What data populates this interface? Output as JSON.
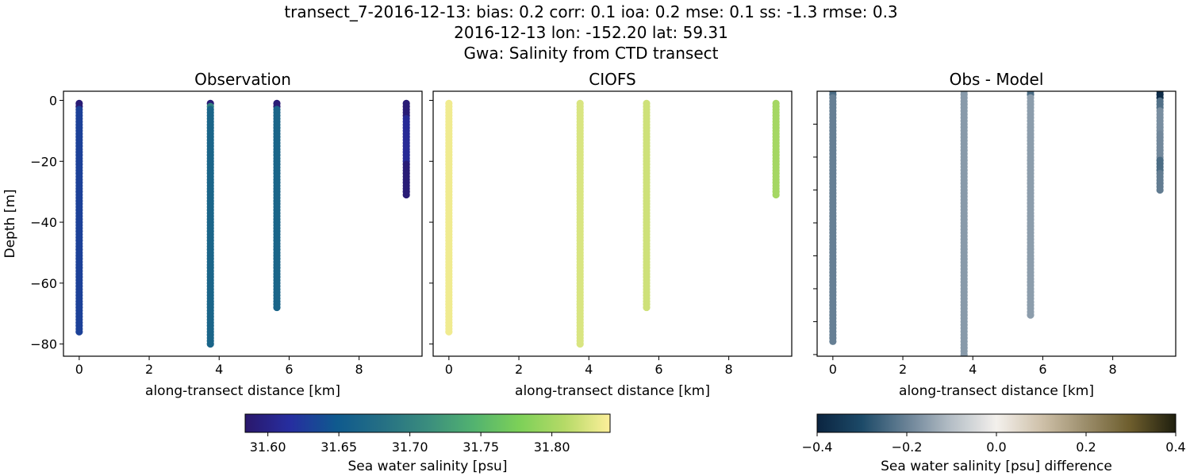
{
  "suptitle": {
    "line1": "transect_7-2016-12-13: bias: 0.2  corr: 0.1  ioa: 0.2  mse: 0.1  ss: -1.3  rmse: 0.3",
    "line2": "2016-12-13 lon: -152.20 lat: 59.31",
    "line3": "Gwa: Salinity from CTD transect"
  },
  "chart_data": [
    {
      "type": "scatter",
      "title": "Observation",
      "xlabel": "along-transect distance [km]",
      "ylabel": "Depth [m]",
      "xlim": [
        -0.45,
        9.8
      ],
      "ylim": [
        -84,
        3
      ],
      "xticks": [
        0,
        2,
        4,
        6,
        8
      ],
      "yticks": [
        0,
        -20,
        -40,
        -60,
        -80
      ],
      "colormap": "haline",
      "columns": [
        {
          "x": 0,
          "segments": [
            [
              -1,
              -2,
              31.59
            ],
            [
              -3,
              -76,
              31.63
            ]
          ]
        },
        {
          "x": 3.75,
          "segments": [
            [
              -1,
              -1,
              31.59
            ],
            [
              -2,
              -2,
              31.7
            ],
            [
              -3,
              -80,
              31.665
            ]
          ]
        },
        {
          "x": 5.65,
          "segments": [
            [
              -1,
              -2,
              31.59
            ],
            [
              -3,
              -68,
              31.665
            ]
          ]
        },
        {
          "x": 9.35,
          "segments": [
            [
              -1,
              -5,
              31.59
            ],
            [
              -6,
              -20,
              31.61
            ],
            [
              -21,
              -31,
              31.59
            ]
          ]
        }
      ]
    },
    {
      "type": "scatter",
      "title": "CIOFS",
      "xlabel": "along-transect distance [km]",
      "xlim": [
        -0.45,
        9.8
      ],
      "ylim": [
        -84,
        3
      ],
      "xticks": [
        0,
        2,
        4,
        6,
        8
      ],
      "yticks": [
        0,
        -20,
        -40,
        -60,
        -80
      ],
      "colormap": "haline",
      "columns": [
        {
          "x": 0,
          "segments": [
            [
              -1,
              -76,
              31.835
            ]
          ]
        },
        {
          "x": 3.75,
          "segments": [
            [
              -1,
              -80,
              31.825
            ]
          ]
        },
        {
          "x": 5.65,
          "segments": [
            [
              -1,
              -68,
              31.82
            ]
          ]
        },
        {
          "x": 9.35,
          "segments": [
            [
              -1,
              -31,
              31.8
            ]
          ]
        }
      ]
    },
    {
      "type": "scatter",
      "title": "Obs - Model",
      "xlabel": "along-transect distance [km]",
      "xlim": [
        -0.45,
        9.8
      ],
      "ylim": [
        -80.5,
        0
      ],
      "xticks": [
        0,
        2,
        4,
        6,
        8
      ],
      "yticks": [
        -10,
        -20,
        -30,
        -40,
        -50,
        -60,
        -70,
        -80
      ],
      "yticklabels_shown": false,
      "colormap": "diff",
      "columns": [
        {
          "x": 0,
          "segments": [
            [
              0,
              -1,
              -0.24
            ],
            [
              -2,
              -76,
              -0.205
            ]
          ]
        },
        {
          "x": 3.75,
          "segments": [
            [
              0,
              -82,
              -0.16
            ]
          ]
        },
        {
          "x": 5.65,
          "segments": [
            [
              0,
              -1,
              -0.24
            ],
            [
              -2,
              -68,
              -0.155
            ]
          ]
        },
        {
          "x": 9.35,
          "segments": [
            [
              0,
              -2,
              -0.38
            ],
            [
              -3,
              -5,
              -0.23
            ],
            [
              -6,
              -12,
              -0.18
            ],
            [
              -13,
              -20,
              -0.19
            ],
            [
              -21,
              -24,
              -0.24
            ],
            [
              -25,
              -30,
              -0.21
            ]
          ]
        }
      ]
    }
  ],
  "colorbars": [
    {
      "label": "Sea water salinity [psu]",
      "range": [
        31.584,
        31.841
      ],
      "ticks": [
        "31.60",
        "31.65",
        "31.70",
        "31.75",
        "31.80"
      ],
      "tick_values": [
        31.6,
        31.65,
        31.7,
        31.75,
        31.8
      ],
      "colormap": "haline"
    },
    {
      "label": "Sea water salinity [psu] difference",
      "range": [
        -0.4,
        0.4
      ],
      "ticks": [
        "−0.4",
        "−0.2",
        "0.0",
        "0.2",
        "0.4"
      ],
      "tick_values": [
        -0.4,
        -0.2,
        0.0,
        0.2,
        0.4
      ],
      "colormap": "diff"
    }
  ],
  "colormaps": {
    "haline": [
      "#2a186c",
      "#262ea0",
      "#0f5a8e",
      "#256f84",
      "#3a8d7e",
      "#52b270",
      "#7cd058",
      "#b5da67",
      "#fdef9a"
    ],
    "diff": [
      "#0b2440",
      "#1c4a68",
      "#6a8296",
      "#b6bfc7",
      "#f3f0ec",
      "#cfc1aa",
      "#9b8d6a",
      "#6c5c2c",
      "#1f1f0e"
    ]
  }
}
